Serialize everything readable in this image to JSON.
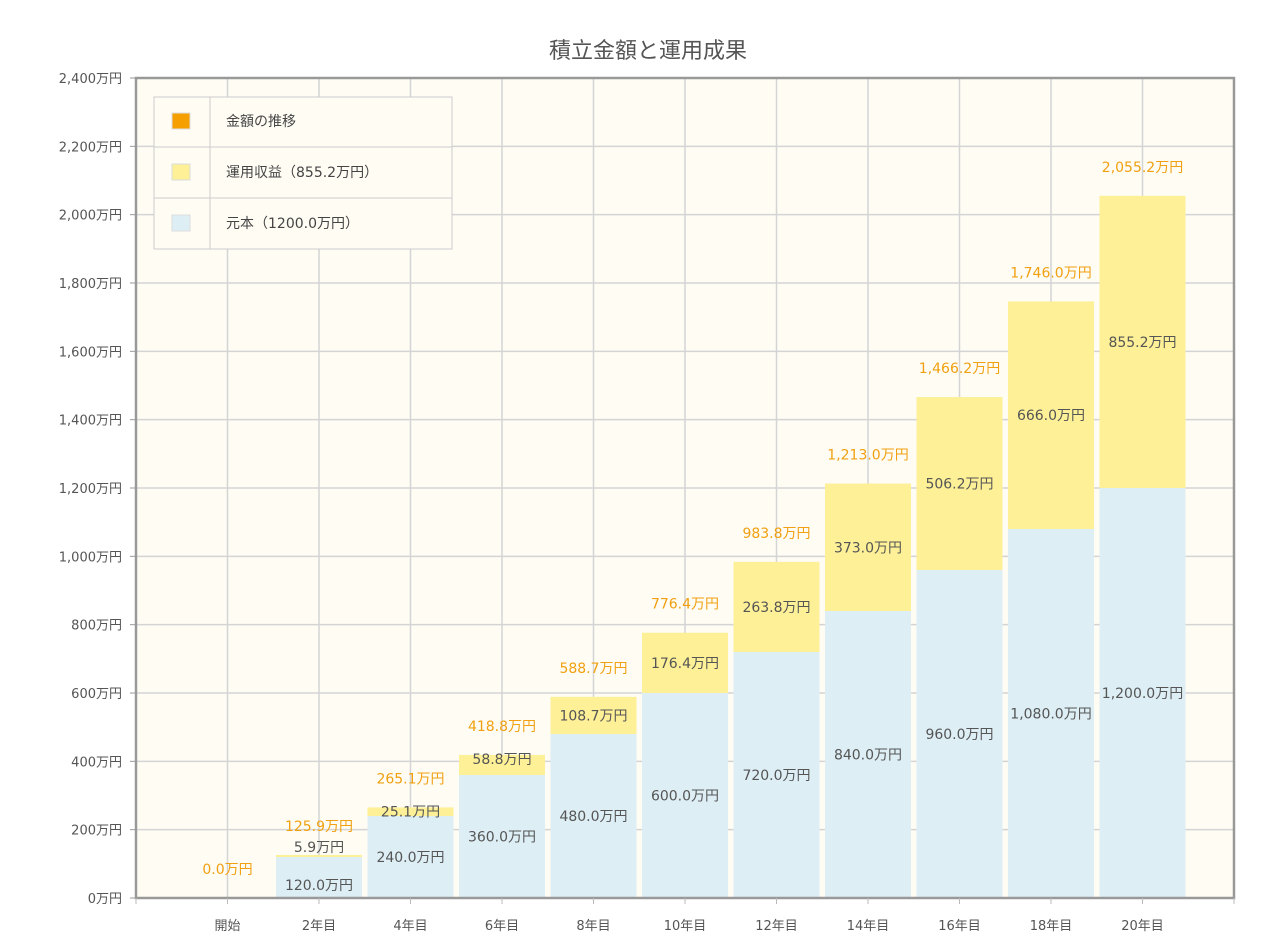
{
  "chart_data": {
    "type": "bar",
    "stacked": true,
    "title": "積立金額と運用成果",
    "xlabel": "",
    "ylabel": "",
    "ylim": [
      0,
      2400
    ],
    "y_ticks": [
      0,
      200,
      400,
      600,
      800,
      1000,
      1200,
      1400,
      1600,
      1800,
      2000,
      2200,
      2400
    ],
    "y_tick_labels": [
      "0万円",
      "200万円",
      "400万円",
      "600万円",
      "800万円",
      "1,000万円",
      "1,200万円",
      "1,400万円",
      "1,600万円",
      "1,800万円",
      "2,000万円",
      "2,200万円",
      "2,400万円"
    ],
    "grid": true,
    "legend_position": "top-left",
    "categories": [
      "開始",
      "2年目",
      "4年目",
      "6年目",
      "8年目",
      "10年目",
      "12年目",
      "14年目",
      "16年目",
      "18年目",
      "20年目"
    ],
    "series": [
      {
        "name": "元本（1200.0万円）",
        "color": "#ddeef5",
        "values": [
          0,
          120.0,
          240.0,
          360.0,
          480.0,
          600.0,
          720.0,
          840.0,
          960.0,
          1080.0,
          1200.0
        ],
        "labels": [
          "",
          "120.0万円",
          "240.0万円",
          "360.0万円",
          "480.0万円",
          "600.0万円",
          "720.0万円",
          "840.0万円",
          "960.0万円",
          "1,080.0万円",
          "1,200.0万円"
        ]
      },
      {
        "name": "運用収益（855.2万円）",
        "color": "#fdf097",
        "values": [
          0,
          5.9,
          25.1,
          58.8,
          108.7,
          176.4,
          263.8,
          373.0,
          506.2,
          666.0,
          855.2
        ],
        "labels": [
          "",
          "5.9万円",
          "25.1万円",
          "58.8万円",
          "108.7万円",
          "176.4万円",
          "263.8万円",
          "373.0万円",
          "506.2万円",
          "666.0万円",
          "855.2万円"
        ]
      }
    ],
    "totals": {
      "name": "金額の推移",
      "color": "#f5a000",
      "values": [
        0.0,
        125.9,
        265.1,
        418.8,
        588.7,
        776.4,
        983.8,
        1213.0,
        1466.2,
        1746.0,
        2055.2
      ],
      "labels": [
        "0.0万円",
        "125.9万円",
        "265.1万円",
        "418.8万円",
        "588.7万円",
        "776.4万円",
        "983.8万円",
        "1,213.0万円",
        "1,466.2万円",
        "1,746.0万円",
        "2,055.2万円"
      ]
    }
  }
}
